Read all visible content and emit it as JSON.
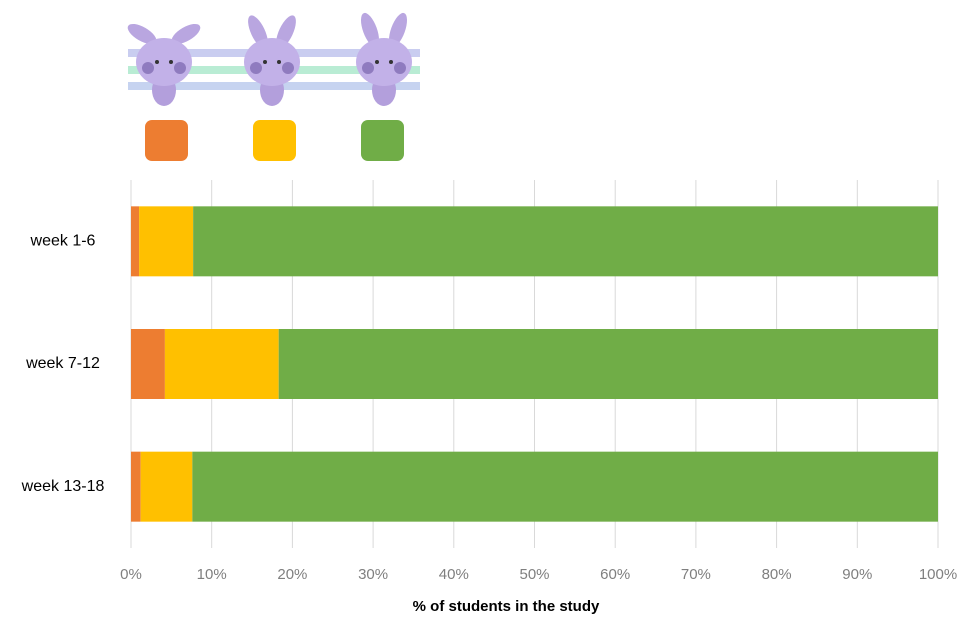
{
  "chart_data": {
    "type": "bar",
    "orientation": "horizontal",
    "stacked": true,
    "x_label": "% of students in the study",
    "categories": [
      "week 1-6",
      "week 7-12",
      "week 13-18"
    ],
    "series": [
      {
        "color": "#ed7d31",
        "values": [
          1.0,
          4.2,
          1.2
        ]
      },
      {
        "color": "#ffc000",
        "values": [
          6.7,
          14.1,
          6.4
        ]
      },
      {
        "color": "#70ad47",
        "values": [
          92.3,
          81.7,
          92.4
        ]
      }
    ],
    "xlim": [
      0,
      100
    ],
    "xticks": [
      {
        "value": 0,
        "label": "0%"
      },
      {
        "value": 10,
        "label": "10%"
      },
      {
        "value": 20,
        "label": "20%"
      },
      {
        "value": 30,
        "label": "30%"
      },
      {
        "value": 40,
        "label": "40%"
      },
      {
        "value": 50,
        "label": "50%"
      },
      {
        "value": 60,
        "label": "60%"
      },
      {
        "value": 70,
        "label": "70%"
      },
      {
        "value": 80,
        "label": "80%"
      },
      {
        "value": 90,
        "label": "90%"
      },
      {
        "value": 100,
        "label": "100%"
      }
    ],
    "grid": true
  }
}
